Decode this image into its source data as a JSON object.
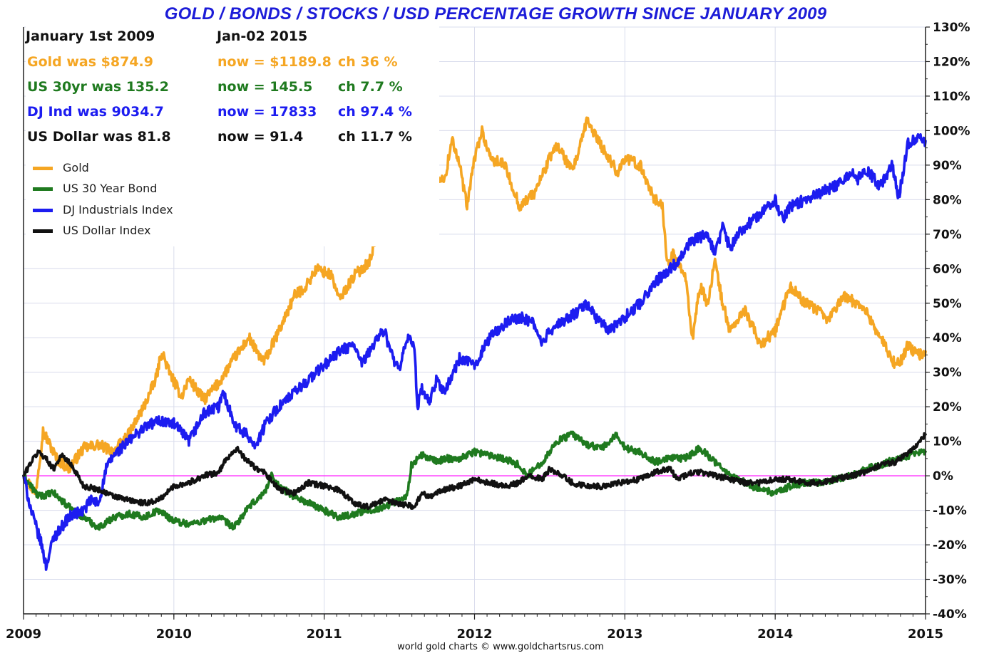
{
  "title": "GOLD / BONDS / STOCKS / USD PERCENTAGE GROWTH SINCE JANUARY 2009",
  "credit": "world gold charts © www.goldchartsrus.com",
  "info_panel": {
    "header_left": "January 1st 2009",
    "header_right": "Jan-02  2015",
    "rows": [
      {
        "was": "Gold was $874.9",
        "now": "now = $1189.8",
        "ch": "ch 36 %",
        "color": "#f5a623"
      },
      {
        "was": "US 30yr was 135.2",
        "now": "now = 145.5",
        "ch": "ch 7.7 %",
        "color": "#1f7a1f"
      },
      {
        "was": "DJ Ind was 9034.7",
        "now": "now = 17833",
        "ch": "ch 97.4 %",
        "color": "#1c1cf0"
      },
      {
        "was": "US Dollar was 81.8",
        "now": "now = 91.4",
        "ch": "ch 11.7 %",
        "color": "#111111"
      }
    ]
  },
  "legend": [
    {
      "label": "Gold",
      "color": "#f5a623"
    },
    {
      "label": "US 30 Year Bond",
      "color": "#1f7a1f"
    },
    {
      "label": "DJ Industrials Index",
      "color": "#1c1cf0"
    },
    {
      "label": "US Dollar Index",
      "color": "#111111"
    }
  ],
  "chart_data": {
    "type": "line",
    "title": "GOLD / BONDS / STOCKS / USD PERCENTAGE GROWTH SINCE JANUARY 2009",
    "x_ticks": [
      "2009",
      "2010",
      "2011",
      "2012",
      "2013",
      "2014",
      "2015"
    ],
    "y_ticks": [
      "130%",
      "120%",
      "110%",
      "100%",
      "90%",
      "80%",
      "70%",
      "60%",
      "50%",
      "40%",
      "30%",
      "20%",
      "10%",
      "0%",
      "-10%",
      "-20%",
      "-30%",
      "-40%"
    ],
    "xlim": [
      2009.0,
      2015.0
    ],
    "ylim": [
      -40,
      130
    ],
    "y_axis_side": "right",
    "legend_position": "top-left",
    "grid": true,
    "zero_line_color": "#ff33ff",
    "series": [
      {
        "name": "Gold",
        "color": "#f5a623",
        "x": [
          2009.0,
          2009.08,
          2009.13,
          2009.22,
          2009.3,
          2009.4,
          2009.5,
          2009.6,
          2009.7,
          2009.8,
          2009.88,
          2009.92,
          2009.97,
          2010.05,
          2010.1,
          2010.2,
          2010.3,
          2010.4,
          2010.5,
          2010.55,
          2010.6,
          2010.7,
          2010.8,
          2010.88,
          2010.95,
          2011.05,
          2011.1,
          2011.2,
          2011.3,
          2011.35,
          2011.45,
          2011.5,
          2011.55,
          2011.6,
          2011.65,
          2011.68,
          2011.7,
          2011.74,
          2011.8,
          2011.85,
          2011.9,
          2011.95,
          2012.0,
          2012.05,
          2012.1,
          2012.2,
          2012.3,
          2012.35,
          2012.4,
          2012.5,
          2012.55,
          2012.65,
          2012.7,
          2012.75,
          2012.85,
          2012.95,
          2013.0,
          2013.1,
          2013.2,
          2013.25,
          2013.28,
          2013.32,
          2013.4,
          2013.45,
          2013.5,
          2013.55,
          2013.6,
          2013.65,
          2013.7,
          2013.8,
          2013.9,
          2013.95,
          2014.0,
          2014.1,
          2014.2,
          2014.28,
          2014.35,
          2014.45,
          2014.55,
          2014.6,
          2014.7,
          2014.8,
          2014.85,
          2014.88,
          2014.92,
          2014.95,
          2015.0
        ],
        "values": [
          0,
          -5,
          13,
          5,
          2,
          8,
          9,
          7,
          12,
          20,
          28,
          36,
          30,
          23,
          28,
          22,
          27,
          34,
          40,
          36,
          33,
          42,
          52,
          55,
          60,
          58,
          51,
          58,
          62,
          70,
          73,
          70,
          80,
          92,
          100,
          115,
          105,
          88,
          85,
          98,
          90,
          78,
          92,
          100,
          92,
          90,
          78,
          80,
          82,
          92,
          96,
          88,
          95,
          103,
          95,
          88,
          92,
          90,
          80,
          78,
          62,
          64,
          58,
          40,
          55,
          50,
          62,
          50,
          42,
          48,
          38,
          40,
          42,
          55,
          50,
          48,
          45,
          52,
          50,
          48,
          40,
          32,
          34,
          38,
          36,
          35,
          36
        ]
      },
      {
        "name": "US 30 Year Bond",
        "color": "#1f7a1f",
        "x": [
          2009.0,
          2009.05,
          2009.1,
          2009.2,
          2009.3,
          2009.4,
          2009.5,
          2009.6,
          2009.7,
          2009.8,
          2009.9,
          2010.0,
          2010.1,
          2010.2,
          2010.3,
          2010.4,
          2010.5,
          2010.6,
          2010.65,
          2010.7,
          2010.8,
          2010.9,
          2011.0,
          2011.1,
          2011.2,
          2011.3,
          2011.4,
          2011.5,
          2011.55,
          2011.58,
          2011.65,
          2011.75,
          2011.8,
          2011.9,
          2012.0,
          2012.1,
          2012.2,
          2012.3,
          2012.35,
          2012.45,
          2012.55,
          2012.65,
          2012.75,
          2012.85,
          2012.95,
          2013.0,
          2013.1,
          2013.2,
          2013.3,
          2013.4,
          2013.5,
          2013.6,
          2013.7,
          2013.8,
          2013.9,
          2014.0,
          2014.1,
          2014.2,
          2014.3,
          2014.4,
          2014.5,
          2014.6,
          2014.7,
          2014.8,
          2014.9,
          2015.0
        ],
        "values": [
          0,
          -3,
          -6,
          -5,
          -9,
          -12,
          -15,
          -12,
          -11,
          -12,
          -10,
          -13,
          -14,
          -13,
          -12,
          -15,
          -9,
          -5,
          0,
          -3,
          -6,
          -8,
          -10,
          -12,
          -11,
          -10,
          -9,
          -7,
          -6,
          3,
          6,
          4,
          5,
          5,
          7,
          6,
          5,
          3,
          0,
          4,
          10,
          12,
          9,
          8,
          12,
          8,
          7,
          4,
          5,
          5,
          8,
          4,
          0,
          -2,
          -4,
          -5,
          -3,
          -2,
          -2,
          -1,
          0,
          2,
          3,
          5,
          6,
          7
        ]
      },
      {
        "name": "DJ Industrials Index",
        "color": "#1c1cf0",
        "x": [
          2009.0,
          2009.05,
          2009.12,
          2009.15,
          2009.2,
          2009.3,
          2009.4,
          2009.45,
          2009.5,
          2009.55,
          2009.6,
          2009.7,
          2009.8,
          2009.9,
          2010.0,
          2010.1,
          2010.2,
          2010.3,
          2010.33,
          2010.38,
          2010.42,
          2010.48,
          2010.55,
          2010.62,
          2010.7,
          2010.8,
          2010.9,
          2011.0,
          2011.1,
          2011.2,
          2011.25,
          2011.3,
          2011.35,
          2011.4,
          2011.45,
          2011.5,
          2011.55,
          2011.6,
          2011.62,
          2011.65,
          2011.7,
          2011.75,
          2011.8,
          2011.9,
          2012.0,
          2012.1,
          2012.2,
          2012.3,
          2012.4,
          2012.45,
          2012.5,
          2012.6,
          2012.7,
          2012.75,
          2012.8,
          2012.85,
          2012.9,
          2013.0,
          2013.1,
          2013.2,
          2013.3,
          2013.35,
          2013.4,
          2013.45,
          2013.55,
          2013.6,
          2013.65,
          2013.7,
          2013.75,
          2013.8,
          2013.9,
          2014.0,
          2014.05,
          2014.1,
          2014.2,
          2014.3,
          2014.4,
          2014.5,
          2014.55,
          2014.6,
          2014.7,
          2014.78,
          2014.82,
          2014.88,
          2014.95,
          2015.0
        ],
        "values": [
          0,
          -10,
          -20,
          -26,
          -18,
          -12,
          -10,
          -7,
          -8,
          2,
          6,
          10,
          14,
          16,
          15,
          10,
          18,
          20,
          24,
          18,
          14,
          12,
          9,
          16,
          20,
          24,
          28,
          32,
          36,
          38,
          32,
          36,
          40,
          42,
          35,
          30,
          40,
          38,
          20,
          25,
          21,
          28,
          24,
          34,
          32,
          40,
          44,
          46,
          44,
          38,
          42,
          45,
          48,
          50,
          46,
          44,
          42,
          46,
          50,
          56,
          60,
          62,
          66,
          68,
          70,
          64,
          72,
          66,
          70,
          72,
          76,
          80,
          74,
          78,
          80,
          82,
          84,
          88,
          86,
          89,
          84,
          90,
          80,
          96,
          98,
          97
        ]
      },
      {
        "name": "US Dollar Index",
        "color": "#111111",
        "x": [
          2009.0,
          2009.05,
          2009.1,
          2009.15,
          2009.2,
          2009.25,
          2009.3,
          2009.35,
          2009.4,
          2009.5,
          2009.6,
          2009.7,
          2009.8,
          2009.9,
          2010.0,
          2010.1,
          2010.2,
          2010.3,
          2010.35,
          2010.42,
          2010.45,
          2010.5,
          2010.55,
          2010.6,
          2010.7,
          2010.8,
          2010.9,
          2011.0,
          2011.1,
          2011.2,
          2011.3,
          2011.4,
          2011.5,
          2011.6,
          2011.65,
          2011.7,
          2011.8,
          2011.9,
          2012.0,
          2012.1,
          2012.2,
          2012.3,
          2012.35,
          2012.45,
          2012.5,
          2012.55,
          2012.65,
          2012.75,
          2012.85,
          2012.95,
          2013.0,
          2013.1,
          2013.2,
          2013.3,
          2013.35,
          2013.45,
          2013.5,
          2013.6,
          2013.7,
          2013.8,
          2013.9,
          2014.0,
          2014.1,
          2014.2,
          2014.3,
          2014.4,
          2014.5,
          2014.6,
          2014.7,
          2014.8,
          2014.9,
          2014.95,
          2015.0
        ],
        "values": [
          0,
          4,
          7,
          5,
          2,
          6,
          4,
          1,
          -3,
          -4,
          -6,
          -7,
          -8,
          -7,
          -3,
          -2,
          0,
          1,
          5,
          8,
          6,
          4,
          2,
          1,
          -4,
          -5,
          -2,
          -3,
          -4,
          -8,
          -9,
          -7,
          -8,
          -9,
          -5,
          -6,
          -4,
          -3,
          -1,
          -2,
          -3,
          -2,
          0,
          -1,
          2,
          1,
          -2,
          -3,
          -3,
          -2,
          -2,
          -1,
          1,
          2,
          -1,
          1,
          1,
          0,
          -1,
          -2,
          -2,
          -1,
          -1,
          -2,
          -2,
          -1,
          0,
          1,
          3,
          4,
          7,
          9,
          12
        ]
      }
    ]
  }
}
